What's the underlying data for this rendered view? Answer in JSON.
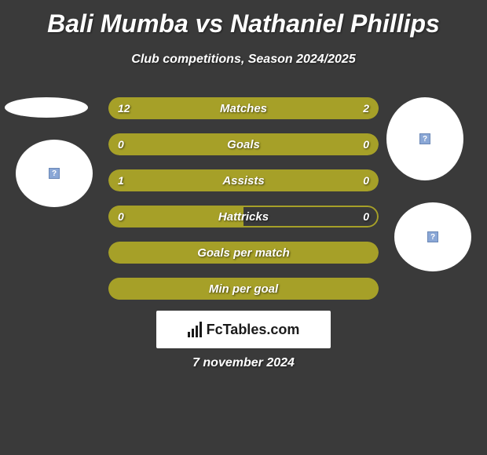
{
  "title": "Bali Mumba vs Nathaniel Phillips",
  "subtitle": "Club competitions, Season 2024/2025",
  "date": "7 november 2024",
  "logo_text": "FcTables.com",
  "colors": {
    "background": "#3a3a3a",
    "bar_fill": "#a6a028",
    "bar_border": "#a6a028",
    "text": "#ffffff",
    "circle_bg": "#ffffff",
    "icon_bg": "#8aa7d6"
  },
  "bars": [
    {
      "label": "Matches",
      "left_value": "12",
      "right_value": "2",
      "left_pct": 76,
      "right_pct": 24,
      "full": false
    },
    {
      "label": "Goals",
      "left_value": "0",
      "right_value": "0",
      "left_pct": 0,
      "right_pct": 0,
      "full": true
    },
    {
      "label": "Assists",
      "left_value": "1",
      "right_value": "0",
      "left_pct": 0,
      "right_pct": 0,
      "full": true
    },
    {
      "label": "Hattricks",
      "left_value": "0",
      "right_value": "0",
      "left_pct": 50,
      "right_pct": 0,
      "full": false
    },
    {
      "label": "Goals per match",
      "left_value": "",
      "right_value": "",
      "left_pct": 0,
      "right_pct": 0,
      "full": true
    },
    {
      "label": "Min per goal",
      "left_value": "",
      "right_value": "",
      "left_pct": 50,
      "right_pct": 50,
      "full": false
    }
  ],
  "icon_label": "?"
}
